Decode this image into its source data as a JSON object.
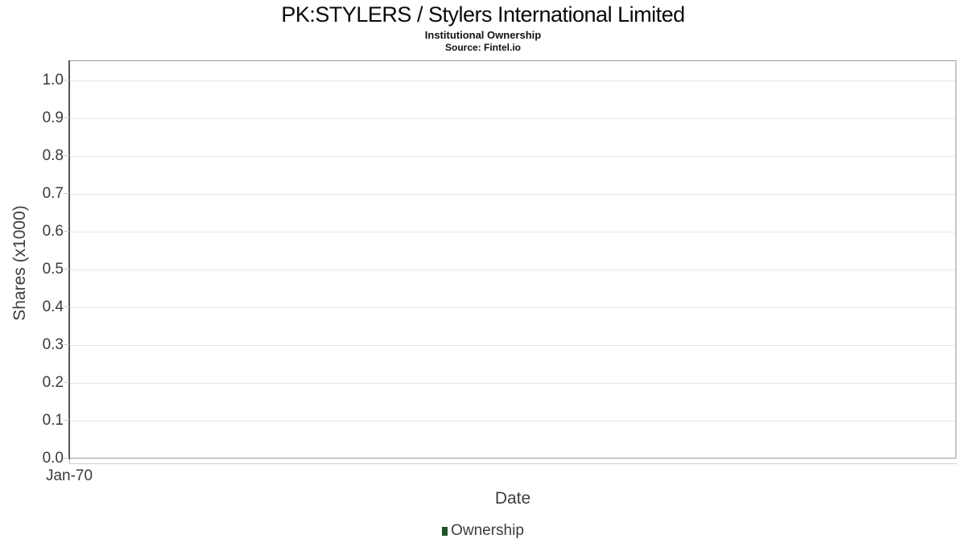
{
  "chart_data": {
    "type": "line",
    "title": "PK:STYLERS / Stylers International Limited",
    "subtitle": "Institutional Ownership",
    "source": "Source: Fintel.io",
    "xlabel": "Date",
    "ylabel": "Shares (x1000)",
    "xticks": [
      "Jan-70"
    ],
    "yticks": [
      0.0,
      0.1,
      0.2,
      0.3,
      0.4,
      0.5,
      0.6,
      0.7,
      0.8,
      0.9,
      1.0
    ],
    "ytick_labels": [
      "0.0",
      "0.1",
      "0.2",
      "0.3",
      "0.4",
      "0.5",
      "0.6",
      "0.7",
      "0.8",
      "0.9",
      "1.0"
    ],
    "ylim": [
      0.0,
      1.05
    ],
    "grid": true,
    "legend_position": "bottom",
    "series": [
      {
        "name": "Ownership",
        "color": "#1e5328",
        "x": [],
        "values": []
      }
    ]
  }
}
